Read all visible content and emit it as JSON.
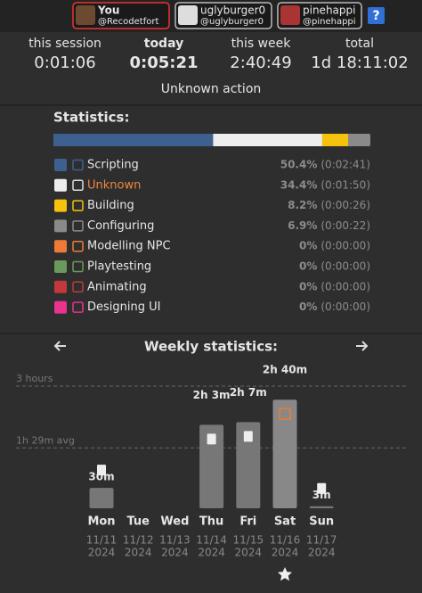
{
  "users": [
    {
      "name": "You",
      "handle": "@Recodetfort"
    },
    {
      "name": "uglyburger0",
      "handle": "@uglyburger0"
    },
    {
      "name": "pinehappi",
      "handle": "@pinehappi"
    }
  ],
  "help": "?",
  "totals": [
    {
      "label": "this session",
      "value": "0:01:06"
    },
    {
      "label": "today",
      "value": "0:05:21"
    },
    {
      "label": "this week",
      "value": "2:40:49"
    },
    {
      "label": "total",
      "value": "1d 18:11:02"
    }
  ],
  "status": "Unknown action",
  "statistics": {
    "title": "Statistics:",
    "track_color": "#8a8a8a",
    "rows": [
      {
        "name": "Scripting",
        "color": "#3d6090",
        "percent": 50.4,
        "percent_label": "50.4%",
        "time": "(0:02:41)"
      },
      {
        "name": "Unknown",
        "color": "#eeeeee",
        "label_color": "#f0883e",
        "percent": 34.4,
        "percent_label": "34.4%",
        "time": "(0:01:50)"
      },
      {
        "name": "Building",
        "color": "#f5c20d",
        "percent": 8.2,
        "percent_label": "8.2%",
        "time": "(0:00:26)"
      },
      {
        "name": "Configuring",
        "color": "#8a8a8a",
        "percent": 6.9,
        "percent_label": "6.9%",
        "time": "(0:00:22)"
      },
      {
        "name": "Modelling NPC",
        "color": "#f07a35",
        "percent": 0,
        "percent_label": "0%",
        "time": "(0:00:00)"
      },
      {
        "name": "Playtesting",
        "color": "#6a9a5b",
        "percent": 0,
        "percent_label": "0%",
        "time": "(0:00:00)"
      },
      {
        "name": "Animating",
        "color": "#c0393b",
        "percent": 0,
        "percent_label": "0%",
        "time": "(0:00:00)"
      },
      {
        "name": "Designing UI",
        "color": "#e8338f",
        "percent": 0,
        "percent_label": "0%",
        "time": "(0:00:00)"
      }
    ]
  },
  "weekly": {
    "title": "Weekly statistics:",
    "ylim": [
      0,
      180
    ],
    "reference_lines": [
      {
        "value": 180,
        "label": "3 hours"
      },
      {
        "value": 89,
        "label": "1h 29m avg"
      }
    ],
    "days": [
      {
        "day": "Mon",
        "date": "11/11",
        "year": "2024",
        "minutes": 30,
        "label": "30m"
      },
      {
        "day": "Tue",
        "date": "11/12",
        "year": "2024",
        "minutes": null,
        "label": null
      },
      {
        "day": "Wed",
        "date": "11/13",
        "year": "2024",
        "minutes": null,
        "label": null
      },
      {
        "day": "Thu",
        "date": "11/14",
        "year": "2024",
        "minutes": 123,
        "label": "2h 3m"
      },
      {
        "day": "Fri",
        "date": "11/15",
        "year": "2024",
        "minutes": 127,
        "label": "2h 7m"
      },
      {
        "day": "Sat",
        "date": "11/16",
        "year": "2024",
        "minutes": 160,
        "label": "2h 40m"
      },
      {
        "day": "Sun",
        "date": "11/17",
        "year": "2024",
        "minutes": 3,
        "label": "3m"
      }
    ]
  }
}
